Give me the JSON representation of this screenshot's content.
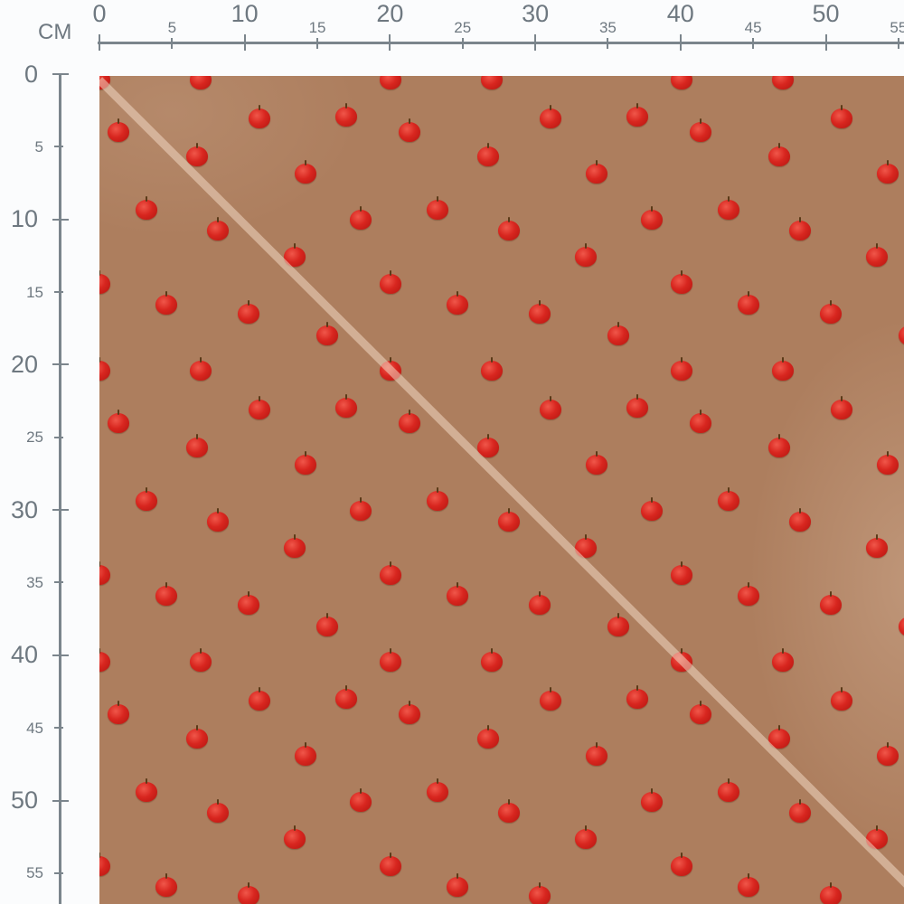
{
  "ruler": {
    "unit": "CM",
    "top_labels": [
      "0",
      "5",
      "10",
      "15",
      "20",
      "25",
      "30",
      "35",
      "40",
      "45",
      "50",
      "55"
    ],
    "left_labels": [
      "0",
      "5",
      "10",
      "15",
      "20",
      "25",
      "30",
      "35",
      "40",
      "45",
      "50",
      "55"
    ]
  },
  "fabric": {
    "pattern": "red apples on brown",
    "background_color": "#ad7e5e",
    "apple_color": "#d8261f",
    "has_diagonal_fold_line": true
  }
}
